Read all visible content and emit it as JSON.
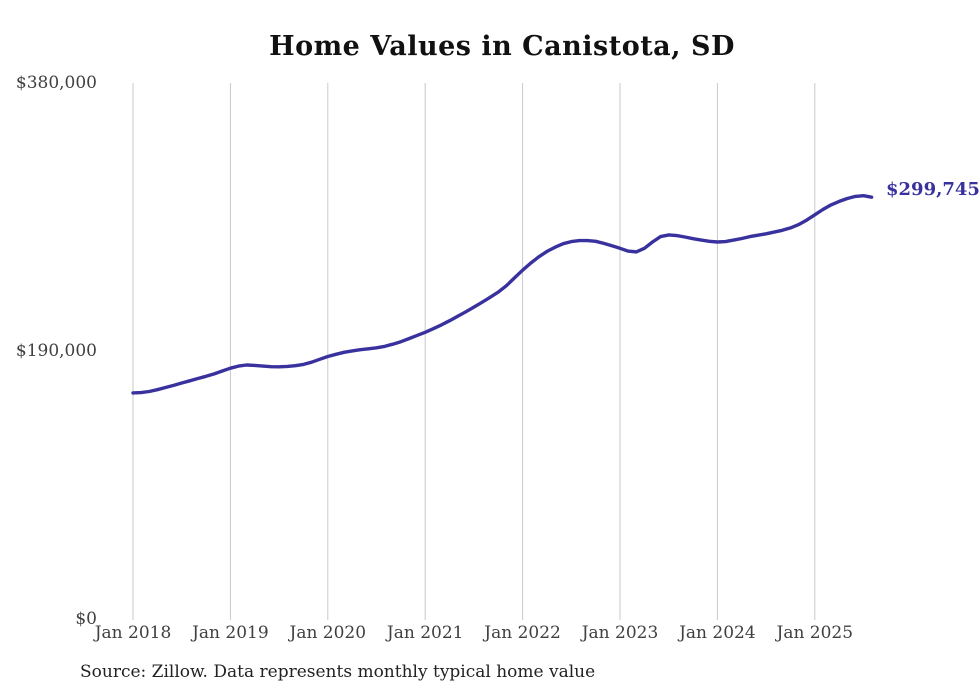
{
  "chart": {
    "title": "Home Values in Canistota, SD",
    "end_label": "$299,745"
  },
  "footer": {
    "source": "Source: Zillow. Data represents monthly typical home value"
  },
  "chart_data": {
    "type": "line",
    "title": "Home Values in Canistota, SD",
    "series_name": "Monthly typical home value",
    "x_tick_labels": [
      "Jan 2018",
      "Jan 2019",
      "Jan 2020",
      "Jan 2021",
      "Jan 2022",
      "Jan 2023",
      "Jan 2024",
      "Jan 2025"
    ],
    "y_tick_labels": [
      "$0",
      "$190,000",
      "$380,000"
    ],
    "y_ticks": [
      0,
      190000,
      380000
    ],
    "ylim": [
      0,
      380000
    ],
    "x_start": "Jan 2018",
    "x_end": "Aug 2025",
    "grid": "vertical-only",
    "legend": "none",
    "line_color": "#39329e",
    "grid_color": "#c9c9c9",
    "end_value": 299745,
    "end_label": "$299,745",
    "values_monthly": [
      161000,
      161200,
      162000,
      163300,
      164800,
      166300,
      168000,
      169600,
      171200,
      172800,
      174500,
      176500,
      178500,
      180000,
      180800,
      180500,
      180000,
      179600,
      179500,
      179800,
      180300,
      181200,
      182800,
      184800,
      186800,
      188400,
      189800,
      190800,
      191600,
      192300,
      193000,
      194000,
      195500,
      197300,
      199500,
      201800,
      204000,
      206500,
      209200,
      212200,
      215300,
      218500,
      221800,
      225200,
      228800,
      232500,
      237000,
      242500,
      248000,
      253000,
      257500,
      261300,
      264300,
      266800,
      268300,
      269000,
      269000,
      268500,
      267000,
      265300,
      263500,
      261500,
      261000,
      263500,
      268000,
      271800,
      273000,
      272500,
      271500,
      270300,
      269300,
      268500,
      268000,
      268300,
      269300,
      270500,
      271800,
      272800,
      273800,
      275000,
      276300,
      278000,
      280300,
      283500,
      287300,
      291000,
      294300,
      296800,
      298800,
      300300,
      300800,
      299745
    ]
  }
}
